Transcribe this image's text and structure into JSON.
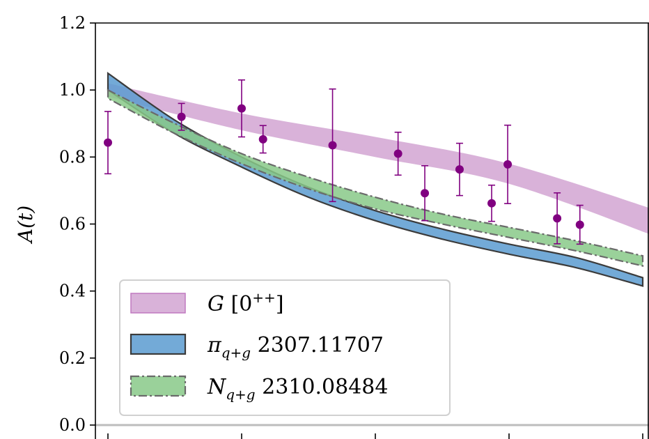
{
  "chart_data": {
    "type": "line",
    "ylabel": "A(t)",
    "xlim": [
      0,
      4.15
    ],
    "ylim": [
      0.0,
      1.2
    ],
    "yticks": [
      0.0,
      0.2,
      0.4,
      0.6,
      0.8,
      1.0,
      1.2
    ],
    "ytick_labels": [
      "0.0",
      "0.2",
      "0.4",
      "0.6",
      "0.8",
      "1.0",
      "1.2"
    ],
    "xticks": [
      0,
      1,
      2,
      3,
      4
    ],
    "hline": 0.0,
    "grid": false,
    "legend_placement": "lower-left",
    "legend": [
      {
        "series": "G",
        "label_main": "G",
        "label_rest": " [0",
        "label_sup": "++",
        "label_end": "]"
      },
      {
        "series": "pi",
        "label_main": "π",
        "label_sub": "q+g",
        "label_rest": " 2307.11707"
      },
      {
        "series": "N",
        "label_main": "N",
        "label_sub": "q+g",
        "label_rest": " 2310.08484"
      }
    ],
    "series": [
      {
        "name": "G [0++]",
        "kind": "band",
        "color": "#c991c9",
        "edge": "none",
        "x": [
          0.0,
          1.0,
          2.0,
          3.0,
          4.15
        ],
        "lower": [
          0.98,
          0.88,
          0.8,
          0.72,
          0.555
        ],
        "upper": [
          1.02,
          0.93,
          0.86,
          0.78,
          0.635
        ]
      },
      {
        "name": "π_{q+g} 2307.11707",
        "kind": "band",
        "color": "#5b9bd0",
        "edge": "#3b3b3b",
        "edge_style": "solid",
        "x": [
          0.0,
          0.5,
          1.0,
          1.5,
          2.0,
          2.5,
          3.0,
          3.5,
          4.0
        ],
        "lower": [
          1.0,
          0.87,
          0.77,
          0.68,
          0.61,
          0.555,
          0.51,
          0.47,
          0.415
        ],
        "upper": [
          1.05,
          0.91,
          0.8,
          0.71,
          0.64,
          0.585,
          0.54,
          0.5,
          0.44
        ]
      },
      {
        "name": "N_{q+g} 2310.08484",
        "kind": "band",
        "color": "#88c988",
        "edge": "#6a6a6a",
        "edge_style": "dashdot",
        "x": [
          0.0,
          0.5,
          1.0,
          1.5,
          2.0,
          2.5,
          3.0,
          3.5,
          4.0
        ],
        "lower": [
          0.975,
          0.87,
          0.78,
          0.705,
          0.645,
          0.6,
          0.56,
          0.52,
          0.475
        ],
        "upper": [
          1.0,
          0.9,
          0.81,
          0.74,
          0.68,
          0.63,
          0.59,
          0.55,
          0.505
        ]
      },
      {
        "name": "data points",
        "kind": "errorbar",
        "color": "#800080",
        "x": [
          0.0,
          0.55,
          1.0,
          1.16,
          1.68,
          2.17,
          2.37,
          2.63,
          2.87,
          2.99,
          3.36,
          3.53
        ],
        "y": [
          0.843,
          0.92,
          0.945,
          0.853,
          0.835,
          0.81,
          0.692,
          0.763,
          0.662,
          0.778,
          0.617,
          0.598
        ],
        "yerr_low": [
          0.093,
          0.04,
          0.085,
          0.041,
          0.168,
          0.064,
          0.082,
          0.078,
          0.054,
          0.117,
          0.076,
          0.058
        ],
        "yerr_high": [
          0.093,
          0.04,
          0.085,
          0.041,
          0.168,
          0.064,
          0.082,
          0.078,
          0.054,
          0.117,
          0.076,
          0.058
        ]
      }
    ]
  }
}
